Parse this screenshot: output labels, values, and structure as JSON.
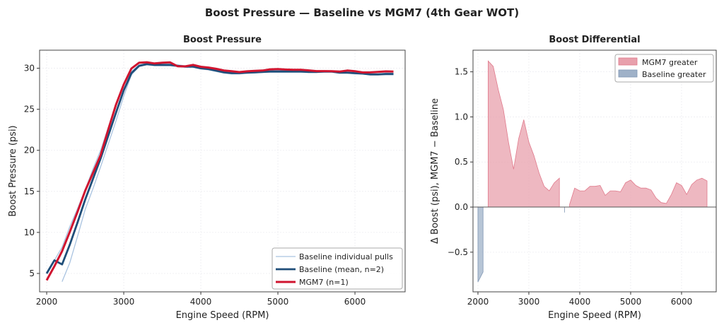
{
  "figure_title": "Boost Pressure — Baseline vs MGM7 (4th Gear WOT)",
  "colors": {
    "baseline": "#1f4e79",
    "baseline_pulls": "#a9c3e0",
    "mgm7": "#d0142f",
    "fill_pos": "#e8a0ac",
    "fill_neg": "#9fb1c8"
  },
  "chart_data": [
    {
      "type": "line",
      "title": "Boost Pressure",
      "xlabel": "Engine Speed (RPM)",
      "ylabel": "Boost Pressure (psi)",
      "xlim": [
        1908,
        6651
      ],
      "ylim": [
        2.76,
        32.2
      ],
      "xticks": [
        2000,
        3000,
        4000,
        5000,
        6000
      ],
      "yticks": [
        5,
        10,
        15,
        20,
        25,
        30
      ],
      "grid": true,
      "legend_position": "lower-right",
      "x": [
        2000,
        2100,
        2200,
        2300,
        2400,
        2500,
        2600,
        2700,
        2800,
        2900,
        3000,
        3100,
        3200,
        3300,
        3400,
        3500,
        3600,
        3700,
        3800,
        3900,
        4000,
        4100,
        4200,
        4300,
        4400,
        4500,
        4600,
        4700,
        4800,
        4900,
        5000,
        5100,
        5200,
        5300,
        5400,
        5500,
        5600,
        5700,
        5800,
        5900,
        6000,
        6100,
        6200,
        6300,
        6400,
        6500
      ],
      "series": [
        {
          "name": "Baseline individual pulls",
          "pulls": [
            [
              5.0,
              6.6,
              8.2,
              10.7,
              12.9,
              15.2,
              17.7,
              20.0,
              22.8,
              25.6,
              28.0,
              29.6,
              30.4,
              30.6,
              30.5,
              30.5,
              30.5,
              30.4,
              30.3,
              30.3,
              30.1,
              30.0,
              29.8,
              29.6,
              29.5,
              29.5,
              29.5,
              29.6,
              29.6,
              29.7,
              29.7,
              29.7,
              29.7,
              29.7,
              29.6,
              29.6,
              29.7,
              29.7,
              29.5,
              29.5,
              29.5,
              29.4,
              29.3,
              29.3,
              29.4,
              29.4
            ],
            [
              null,
              null,
              4.0,
              6.3,
              9.5,
              12.8,
              15.3,
              18.0,
              20.8,
              23.6,
              26.6,
              29.2,
              30.2,
              30.4,
              30.3,
              30.3,
              30.3,
              30.2,
              30.1,
              30.1,
              29.9,
              29.8,
              29.6,
              29.4,
              29.3,
              29.3,
              29.4,
              29.4,
              29.5,
              29.5,
              29.5,
              29.5,
              29.5,
              29.5,
              29.5,
              29.5,
              29.5,
              29.5,
              29.4,
              29.4,
              29.3,
              29.3,
              29.2,
              29.2,
              29.2,
              29.2
            ]
          ]
        },
        {
          "name": "Baseline (mean, n=2)",
          "values": [
            5.0,
            6.6,
            6.1,
            8.5,
            11.2,
            14.0,
            16.5,
            19.0,
            21.8,
            24.6,
            27.3,
            29.4,
            30.3,
            30.5,
            30.4,
            30.4,
            30.4,
            30.3,
            30.2,
            30.2,
            30.0,
            29.9,
            29.7,
            29.5,
            29.4,
            29.4,
            29.45,
            29.5,
            29.55,
            29.6,
            29.6,
            29.6,
            29.6,
            29.6,
            29.55,
            29.55,
            29.6,
            29.6,
            29.45,
            29.45,
            29.4,
            29.35,
            29.25,
            29.25,
            29.3,
            29.3
          ]
        },
        {
          "name": "MGM7 (n=1)",
          "values": [
            4.17,
            5.88,
            7.72,
            10.06,
            12.5,
            15.08,
            17.22,
            19.42,
            22.56,
            25.57,
            28.02,
            29.97,
            30.68,
            30.73,
            30.58,
            30.67,
            30.72,
            30.24,
            30.23,
            30.41,
            30.18,
            30.08,
            29.93,
            29.73,
            29.64,
            29.53,
            29.63,
            29.68,
            29.72,
            29.87,
            29.9,
            29.84,
            29.81,
            29.81,
            29.74,
            29.65,
            29.65,
            29.64,
            29.59,
            29.72,
            29.64,
            29.49,
            29.5,
            29.55,
            29.62,
            29.59
          ]
        }
      ]
    },
    {
      "type": "area",
      "title": "Boost Differential",
      "xlabel": "Engine Speed (RPM)",
      "ylabel": "Δ Boost (psi), MGM7 − Baseline",
      "xlim": [
        1903,
        6681
      ],
      "ylim": [
        -0.94,
        1.74
      ],
      "xticks": [
        2000,
        3000,
        4000,
        5000,
        6000
      ],
      "yticks": [
        -0.5,
        0.0,
        0.5,
        1.0,
        1.5
      ],
      "ytick_labels": [
        "−0.5",
        "0.0",
        "0.5",
        "1.0",
        "1.5"
      ],
      "grid": true,
      "legend_position": "upper-right",
      "legend": [
        "MGM7 greater",
        "Baseline greater"
      ],
      "x": [
        2000,
        2100,
        2200,
        2300,
        2400,
        2500,
        2600,
        2700,
        2800,
        2900,
        3000,
        3100,
        3200,
        3300,
        3400,
        3500,
        3600,
        3700,
        3800,
        3900,
        4000,
        4100,
        4200,
        4300,
        4400,
        4500,
        4600,
        4700,
        4800,
        4900,
        5000,
        5100,
        5200,
        5300,
        5400,
        5500,
        5600,
        5700,
        5800,
        5900,
        6000,
        6100,
        6200,
        6300,
        6400,
        6500
      ],
      "values": [
        -0.83,
        -0.72,
        1.62,
        1.56,
        1.3,
        1.08,
        0.72,
        0.42,
        0.76,
        0.97,
        0.72,
        0.57,
        0.38,
        0.23,
        0.18,
        0.27,
        0.32,
        -0.06,
        0.03,
        0.21,
        0.18,
        0.18,
        0.23,
        0.23,
        0.24,
        0.13,
        0.18,
        0.18,
        0.17,
        0.27,
        0.3,
        0.24,
        0.21,
        0.21,
        0.19,
        0.1,
        0.05,
        0.04,
        0.14,
        0.27,
        0.24,
        0.14,
        0.25,
        0.3,
        0.32,
        0.29
      ]
    }
  ]
}
